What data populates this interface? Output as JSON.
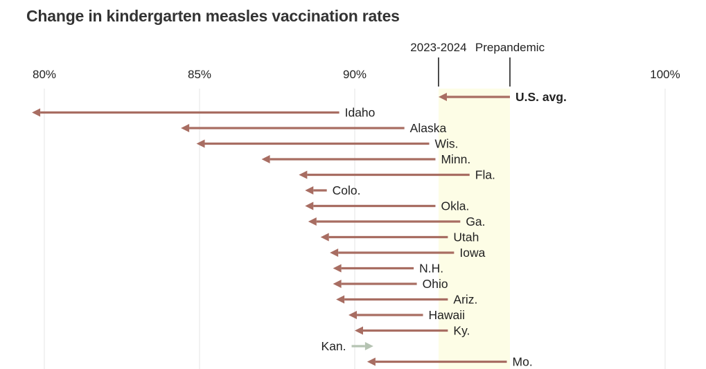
{
  "title": "Change in kindergarten measles vaccination rates",
  "chart_data": {
    "type": "arrow",
    "title": "Change in kindergarten measles vaccination rates",
    "xlim": [
      80,
      100
    ],
    "x_ticks": [
      {
        "value": 80,
        "label": "80%"
      },
      {
        "value": 85,
        "label": "85%"
      },
      {
        "value": 90,
        "label": "90%"
      },
      {
        "value": 100,
        "label": "100%"
      }
    ],
    "grid": true,
    "reference_band": {
      "from": 92.7,
      "to": 95.0,
      "from_label": "2023-2024",
      "to_label": "Prepandemic",
      "color": "#fdfde6"
    },
    "colors": {
      "decrease": "#a86d62",
      "increase": "#b5c3b2",
      "text": "#222222",
      "title": "#333333",
      "grid": "#e4e4e4"
    },
    "series": [
      {
        "label": "U.S. avg.",
        "from": 95.0,
        "to": 92.7,
        "highlight": true
      },
      {
        "label": "Idaho",
        "from": 89.5,
        "to": 79.6
      },
      {
        "label": "Alaska",
        "from": 91.6,
        "to": 84.4
      },
      {
        "label": "Wis.",
        "from": 92.4,
        "to": 84.9
      },
      {
        "label": "Minn.",
        "from": 92.6,
        "to": 87.0
      },
      {
        "label": "Fla.",
        "from": 93.7,
        "to": 88.2
      },
      {
        "label": "Colo.",
        "from": 89.1,
        "to": 88.4
      },
      {
        "label": "Okla.",
        "from": 92.6,
        "to": 88.4
      },
      {
        "label": "Ga.",
        "from": 93.4,
        "to": 88.5
      },
      {
        "label": "Utah",
        "from": 93.0,
        "to": 88.9
      },
      {
        "label": "Iowa",
        "from": 93.2,
        "to": 89.2
      },
      {
        "label": "N.H.",
        "from": 91.9,
        "to": 89.3
      },
      {
        "label": "Ohio",
        "from": 92.0,
        "to": 89.3
      },
      {
        "label": "Ariz.",
        "from": 93.0,
        "to": 89.4
      },
      {
        "label": "Hawaii",
        "from": 92.2,
        "to": 89.8
      },
      {
        "label": "Ky.",
        "from": 93.0,
        "to": 90.0
      },
      {
        "label": "Kan.",
        "from": 89.9,
        "to": 90.6
      },
      {
        "label": "Mo.",
        "from": 94.9,
        "to": 90.4
      }
    ]
  }
}
